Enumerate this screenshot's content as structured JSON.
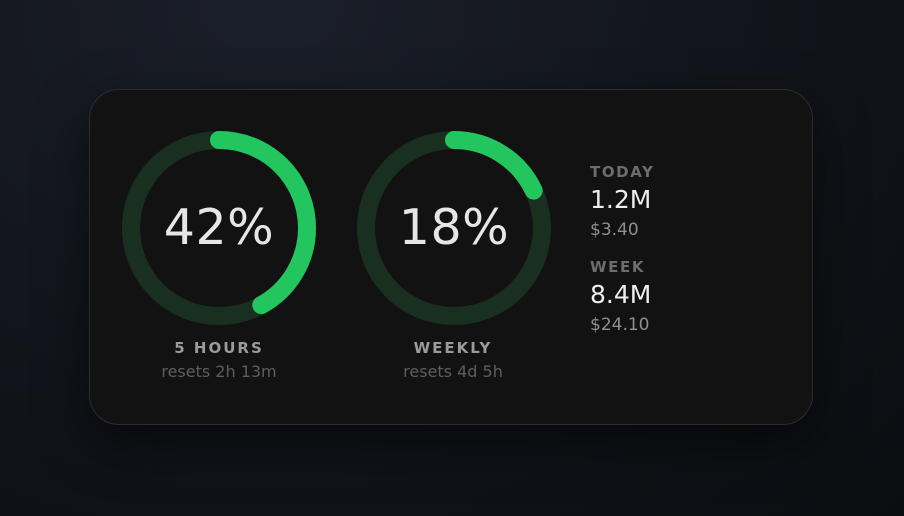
{
  "colors": {
    "accent": "#22c55e",
    "track": "#193021",
    "card": "#121212"
  },
  "gauges": [
    {
      "percent_label": "42%",
      "value": 0.42,
      "label": "5 HOURS",
      "reset": "resets 2h 13m"
    },
    {
      "percent_label": "18%",
      "value": 0.18,
      "label": "WEEKLY",
      "reset": "resets 4d 5h"
    }
  ],
  "stats": {
    "today": {
      "label": "TODAY",
      "value": "1.2M",
      "cost": "$3.40"
    },
    "week": {
      "label": "WEEK",
      "value": "8.4M",
      "cost": "$24.10"
    }
  }
}
